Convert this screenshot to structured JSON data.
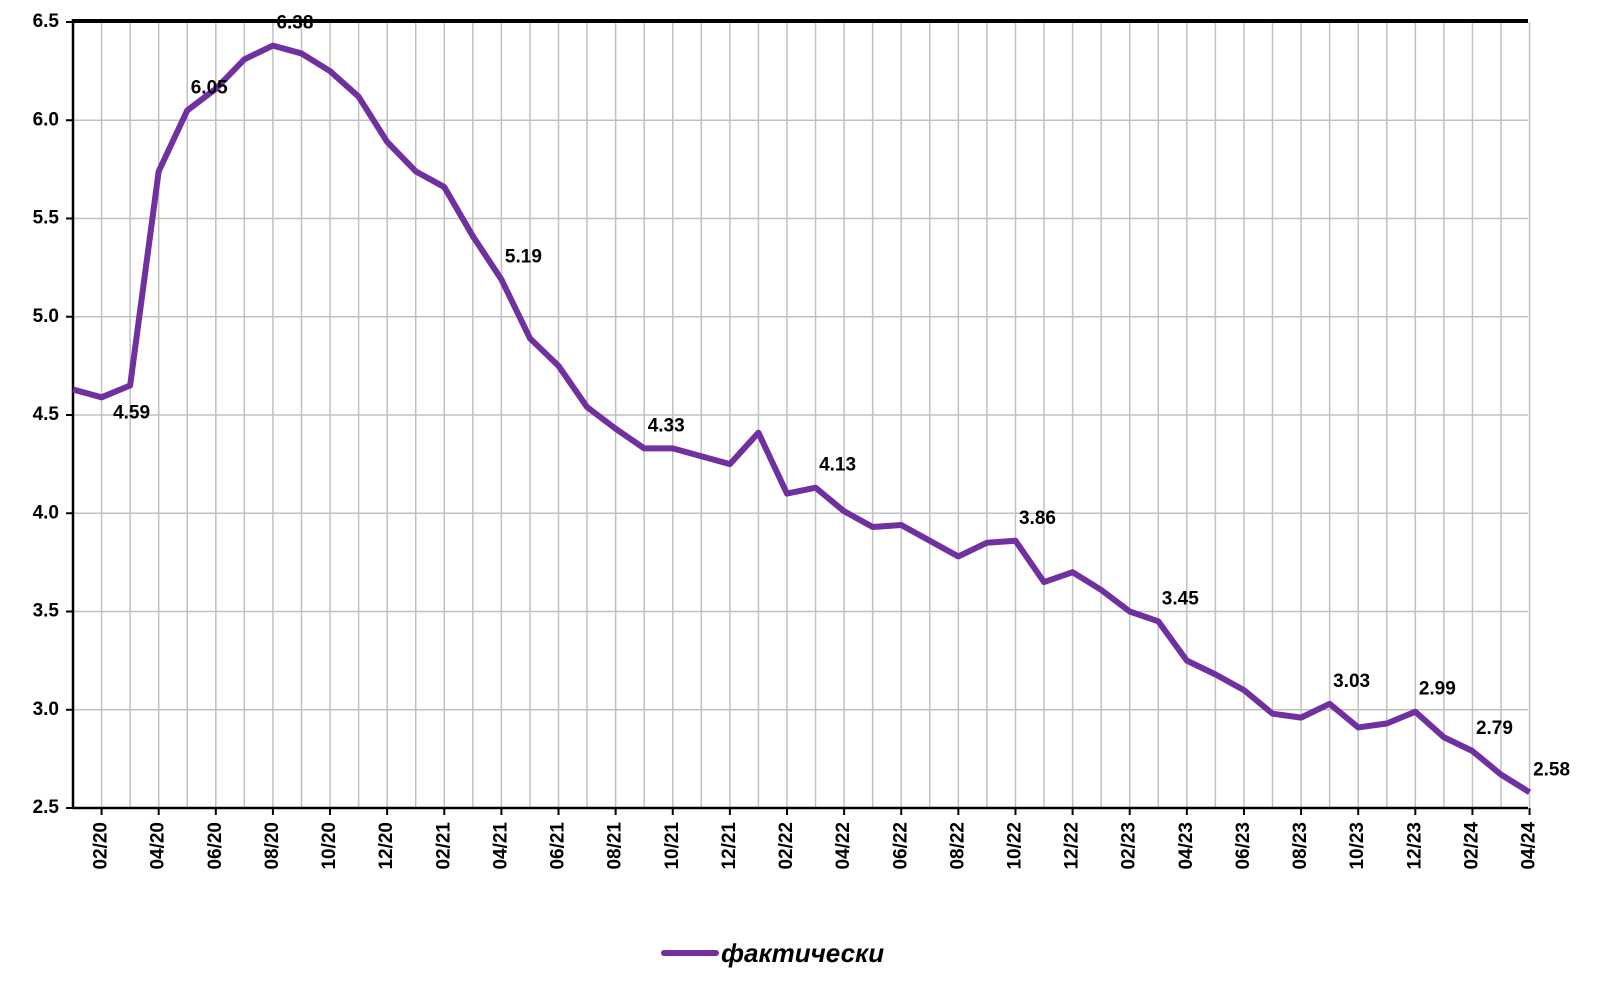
{
  "chart_data": {
    "type": "line",
    "categories": [
      null,
      "02/20",
      null,
      "04/20",
      null,
      "06/20",
      null,
      "08/20",
      null,
      "10/20",
      null,
      "12/20",
      null,
      "02/21",
      null,
      "04/21",
      null,
      "06/21",
      null,
      "08/21",
      null,
      "10/21",
      null,
      "12/21",
      null,
      "02/22",
      null,
      "04/22",
      null,
      "06/22",
      null,
      "08/22",
      null,
      "10/22",
      null,
      "12/22",
      null,
      "02/23",
      null,
      "04/23",
      null,
      "06/23",
      null,
      "08/23",
      null,
      "10/23",
      null,
      "12/23",
      null,
      "02/24",
      null,
      "04/24"
    ],
    "series": [
      {
        "name": "фактически",
        "color": "#7030a0",
        "values": [
          4.63,
          4.59,
          4.65,
          5.74,
          6.05,
          6.16,
          6.31,
          6.38,
          6.34,
          6.25,
          6.12,
          5.89,
          5.74,
          5.66,
          5.41,
          5.19,
          4.89,
          4.75,
          4.54,
          4.43,
          4.33,
          4.33,
          4.29,
          4.25,
          4.41,
          4.1,
          4.13,
          4.01,
          3.93,
          3.94,
          3.86,
          3.78,
          3.85,
          3.86,
          3.65,
          3.7,
          3.61,
          3.5,
          3.45,
          3.25,
          3.18,
          3.1,
          2.98,
          2.96,
          3.03,
          2.91,
          2.93,
          2.99,
          2.86,
          2.79,
          2.67,
          2.58
        ],
        "value_labels": [
          null,
          "4.59",
          null,
          null,
          "6.05",
          null,
          null,
          "6.38",
          null,
          null,
          null,
          null,
          null,
          null,
          null,
          "5.19",
          null,
          null,
          null,
          null,
          "4.33",
          null,
          null,
          null,
          null,
          null,
          "4.13",
          null,
          null,
          null,
          null,
          null,
          null,
          "3.86",
          null,
          null,
          null,
          null,
          "3.45",
          null,
          null,
          null,
          null,
          null,
          "3.03",
          null,
          null,
          "2.99",
          null,
          "2.79",
          null,
          "2.58"
        ]
      }
    ],
    "ylim": [
      2.5,
      6.5
    ],
    "yticks": [
      2.5,
      {
        "value": 3,
        "label": "3.0"
      },
      3.5,
      {
        "value": 4,
        "label": "4.0"
      },
      4.5,
      {
        "value": 5,
        "label": "5.0"
      },
      5.5,
      {
        "value": 6,
        "label": "6.0"
      },
      6.5
    ],
    "grid": true,
    "legend": "bottom"
  }
}
